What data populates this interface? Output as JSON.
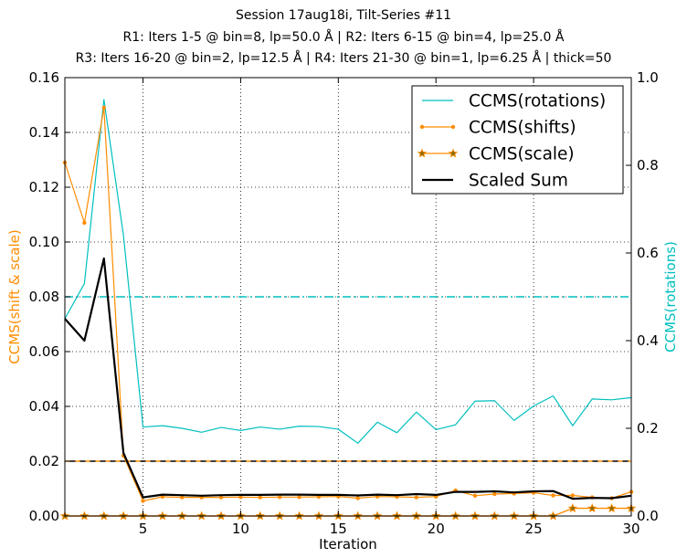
{
  "chart_data": {
    "type": "line",
    "title_lines": [
      "Session 17aug18i, Tilt-Series #11",
      "R1: Iters 1-5 @ bin=8, lp=50.0 Å | R2: Iters 6-15 @ bin=4, lp=25.0 Å",
      "R3: Iters 16-20 @ bin=2, lp=12.5 Å | R4: Iters 21-30 @ bin=1, lp=6.25 Å | thick=50"
    ],
    "xlabel": "Iteration",
    "ylabel_left": "CCMS(shift & scale)",
    "ylabel_right": "CCMS(rotations)",
    "xlim": [
      1,
      30
    ],
    "ylim_left": [
      0,
      0.16
    ],
    "ylim_right": [
      0,
      1.0
    ],
    "x_ticks": [
      5,
      10,
      15,
      20,
      25,
      30
    ],
    "y_left_ticks": [
      0.0,
      0.02,
      0.04,
      0.06,
      0.08,
      0.1,
      0.12,
      0.14,
      0.16
    ],
    "y_left_tick_labels": [
      "0.00",
      "0.02",
      "0.04",
      "0.06",
      "0.08",
      "0.10",
      "0.12",
      "0.14",
      "0.16"
    ],
    "y_right_ticks": [
      0.0,
      0.2,
      0.4,
      0.6,
      0.8,
      1.0
    ],
    "y_right_tick_labels": [
      "0.0",
      "0.2",
      "0.4",
      "0.6",
      "0.8",
      "1.0"
    ],
    "grid": true,
    "legend_position": "top-right",
    "x": [
      1,
      2,
      3,
      4,
      5,
      6,
      7,
      8,
      9,
      10,
      11,
      12,
      13,
      14,
      15,
      16,
      17,
      18,
      19,
      20,
      21,
      22,
      23,
      24,
      25,
      26,
      27,
      28,
      29,
      30
    ],
    "series": [
      {
        "name": "CCMS(rotations)",
        "axis": "right",
        "color": "#00bfbf",
        "style": "solid",
        "marker": "none",
        "values": [
          0.45,
          0.53,
          0.95,
          0.64,
          0.203,
          0.206,
          0.2,
          0.191,
          0.202,
          0.195,
          0.203,
          0.198,
          0.205,
          0.204,
          0.198,
          0.166,
          0.214,
          0.19,
          0.237,
          0.197,
          0.208,
          0.262,
          0.263,
          0.218,
          0.251,
          0.274,
          0.206,
          0.267,
          0.265,
          0.27
        ]
      },
      {
        "name": "CCMS(shifts)",
        "axis": "left",
        "color": "#ff8c00",
        "style": "solid",
        "marker": "dot",
        "values": [
          0.129,
          0.107,
          0.149,
          0.022,
          0.0055,
          0.007,
          0.0068,
          0.0068,
          0.0068,
          0.0069,
          0.0068,
          0.0069,
          0.0069,
          0.007,
          0.0071,
          0.0065,
          0.0071,
          0.007,
          0.0068,
          0.0071,
          0.0093,
          0.0074,
          0.008,
          0.0082,
          0.0085,
          0.0075,
          0.0075,
          0.0068,
          0.0065,
          0.0088
        ]
      },
      {
        "name": "CCMS(scale)",
        "axis": "left",
        "color": "#ff8c00",
        "style": "solid",
        "marker": "star",
        "values": [
          0,
          0,
          0,
          0,
          0,
          0,
          0,
          0,
          0,
          0,
          0,
          0,
          0,
          0,
          0,
          0,
          0,
          0,
          0,
          0,
          0,
          0,
          0,
          0,
          0,
          0,
          0.0028,
          0.0028,
          0.0028,
          0.0028
        ]
      },
      {
        "name": "Scaled Sum",
        "axis": "left",
        "color": "#000000",
        "style": "solid",
        "marker": "none",
        "values": [
          0.072,
          0.064,
          0.094,
          0.023,
          0.0068,
          0.0078,
          0.0076,
          0.0074,
          0.0076,
          0.0077,
          0.0077,
          0.0078,
          0.0078,
          0.0077,
          0.0077,
          0.0075,
          0.0078,
          0.0076,
          0.008,
          0.0077,
          0.0088,
          0.0088,
          0.009,
          0.0086,
          0.009,
          0.0091,
          0.0063,
          0.0066,
          0.0065,
          0.0074
        ]
      }
    ],
    "reference_lines": [
      {
        "axis": "right",
        "value": 0.5,
        "color": "#00bfbf",
        "style": "dashdot"
      },
      {
        "axis": "left",
        "value": 0.02,
        "color": "#ff8c00",
        "style": "dashed"
      },
      {
        "axis": "left",
        "value": 0.02,
        "color": "#000000",
        "style": "dashed"
      }
    ]
  }
}
